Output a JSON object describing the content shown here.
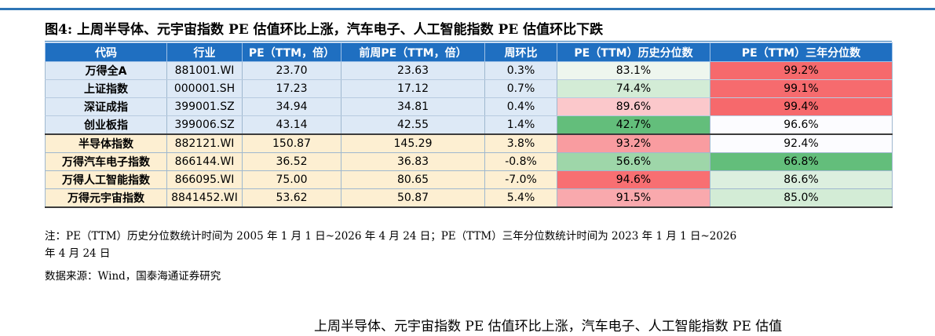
{
  "caption": "图4:  上周半导体、元宇宙指数 PE 估值环比上涨，汽车电子、人工智能指数 PE 估值环比下跌",
  "columns": [
    "代码",
    "行业",
    "PE（TTM，倍）",
    "前周PE（TTM，倍）",
    "周环比",
    "PE（TTM）历史分位数",
    "PE（TTM）三年分位数"
  ],
  "rows": [
    {
      "name": "万得全A",
      "code": "881001.WI",
      "pe": "23.70",
      "prev_pe": "23.63",
      "wow": "0.3%",
      "hist_pct": "83.1%",
      "hist_color": "#eef6ee",
      "three_pct": "99.2%",
      "three_color": "#f6696c"
    },
    {
      "name": "上证指数",
      "code": "000001.SH",
      "pe": "17.23",
      "prev_pe": "17.12",
      "wow": "0.7%",
      "hist_pct": "74.4%",
      "hist_color": "#d3ecd6",
      "three_pct": "99.1%",
      "three_color": "#f66b6e"
    },
    {
      "name": "深证成指",
      "code": "399001.SZ",
      "pe": "34.94",
      "prev_pe": "34.81",
      "wow": "0.4%",
      "hist_pct": "89.6%",
      "hist_color": "#fbc8cb",
      "three_pct": "99.4%",
      "three_color": "#f6696c"
    },
    {
      "name": "创业板指",
      "code": "399006.SZ",
      "pe": "43.14",
      "prev_pe": "42.55",
      "wow": "1.4%",
      "hist_pct": "42.7%",
      "hist_color": "#63be7b",
      "three_pct": "96.6%",
      "three_color": "#fcfcff"
    },
    {
      "name": "半导体指数",
      "code": "882121.WI",
      "pe": "150.87",
      "prev_pe": "145.29",
      "wow": "3.8%",
      "hist_pct": "93.2%",
      "hist_color": "#f99ca0",
      "three_pct": "92.4%",
      "three_color": "#fcfcff"
    },
    {
      "name": "万得汽车电子指数",
      "code": "866144.WI",
      "pe": "36.52",
      "prev_pe": "36.83",
      "wow": "-0.8%",
      "hist_pct": "56.6%",
      "hist_color": "#9ed6a9",
      "three_pct": "66.8%",
      "three_color": "#63be7b"
    },
    {
      "name": "万得人工智能指数",
      "code": "866095.WI",
      "pe": "75.00",
      "prev_pe": "80.65",
      "wow": "-7.0%",
      "hist_pct": "94.6%",
      "hist_color": "#f86f72",
      "three_pct": "86.6%",
      "three_color": "#dcefdf"
    },
    {
      "name": "万得元宇宙指数",
      "code": "8841452.WI",
      "pe": "53.62",
      "prev_pe": "50.87",
      "wow": "5.4%",
      "hist_pct": "91.5%",
      "hist_color": "#f9a9ad",
      "three_pct": "85.0%",
      "three_color": "#d3ecd6"
    }
  ],
  "note_line1": "注：PE（TTM）历史分位数统计时间为 2005 年 1 月 1 日~2026 年 4 月 24 日；PE（TTM）三年分位数统计时间为 2023 年 1 月 1 日~2026",
  "note_line2": "年 4 月 24 日",
  "source": "数据来源：Wind，国泰海通证券研究",
  "bottom_text": "上周半导体、元宇宙指数 PE 估值环比上涨，汽车电子、人工智能指数 PE 估值"
}
